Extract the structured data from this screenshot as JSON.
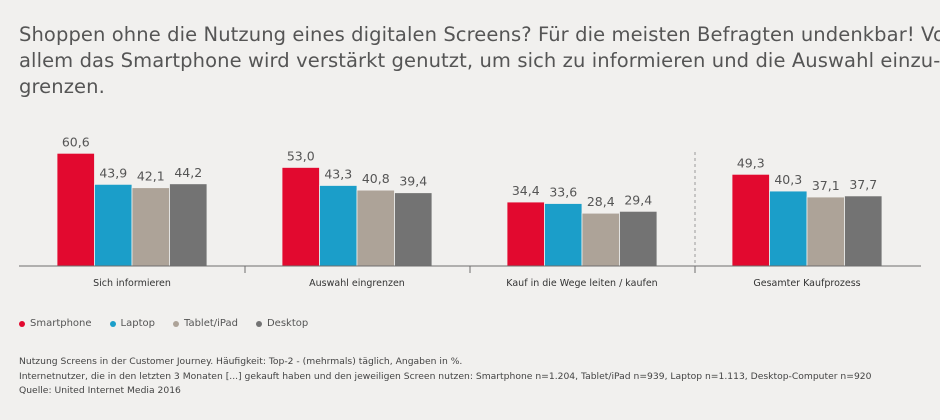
{
  "title_lines": [
    "Shoppen ohne die Nutzung eines digitalen Screens? Für die meisten Befragten undenkbar! Vor",
    "allem das Smartphone wird verstärkt genutzt, um sich zu informieren und die Auswahl einzu-",
    "grenzen."
  ],
  "chart_data": {
    "type": "bar",
    "categories": [
      "Sich informieren",
      "Auswahl eingrenzen",
      "Kauf in die Wege leiten / kaufen",
      "Gesamter Kaufprozess"
    ],
    "series": [
      {
        "name": "Smartphone",
        "color": "#e2092f",
        "values": [
          60.6,
          53.0,
          34.4,
          49.3
        ]
      },
      {
        "name": "Laptop",
        "color": "#1b9ec9",
        "values": [
          43.9,
          43.3,
          33.6,
          40.3
        ]
      },
      {
        "name": "Tablet/iPad",
        "color": "#ada398",
        "values": [
          42.1,
          40.8,
          28.4,
          37.1
        ]
      },
      {
        "name": "Desktop",
        "color": "#737373",
        "values": [
          44.2,
          39.4,
          29.4,
          37.7
        ]
      }
    ],
    "value_labels": [
      [
        "60,6",
        "53,0",
        "34,4",
        "49,3"
      ],
      [
        "43,9",
        "43,3",
        "33,6",
        "40,3"
      ],
      [
        "42,1",
        "40,8",
        "28,4",
        "37,1"
      ],
      [
        "44,2",
        "39,4",
        "29,4",
        "37,7"
      ]
    ],
    "ylim": [
      0,
      70
    ],
    "legend_position": "bottom-left",
    "grid": false,
    "separator_before_last": true
  },
  "footnotes": [
    "Nutzung Screens in der Customer Journey. Häufigkeit: Top-2 - (mehrmals) täglich, Angaben in %.",
    "Internetnutzer, die in den letzten 3 Monaten [...] gekauft haben und den jeweiligen Screen nutzen: Smartphone n=1.204, Tablet/iPad n=939, Laptop n=1.113, Desktop-Computer n=920",
    "Quelle: United Internet Media 2016"
  ]
}
